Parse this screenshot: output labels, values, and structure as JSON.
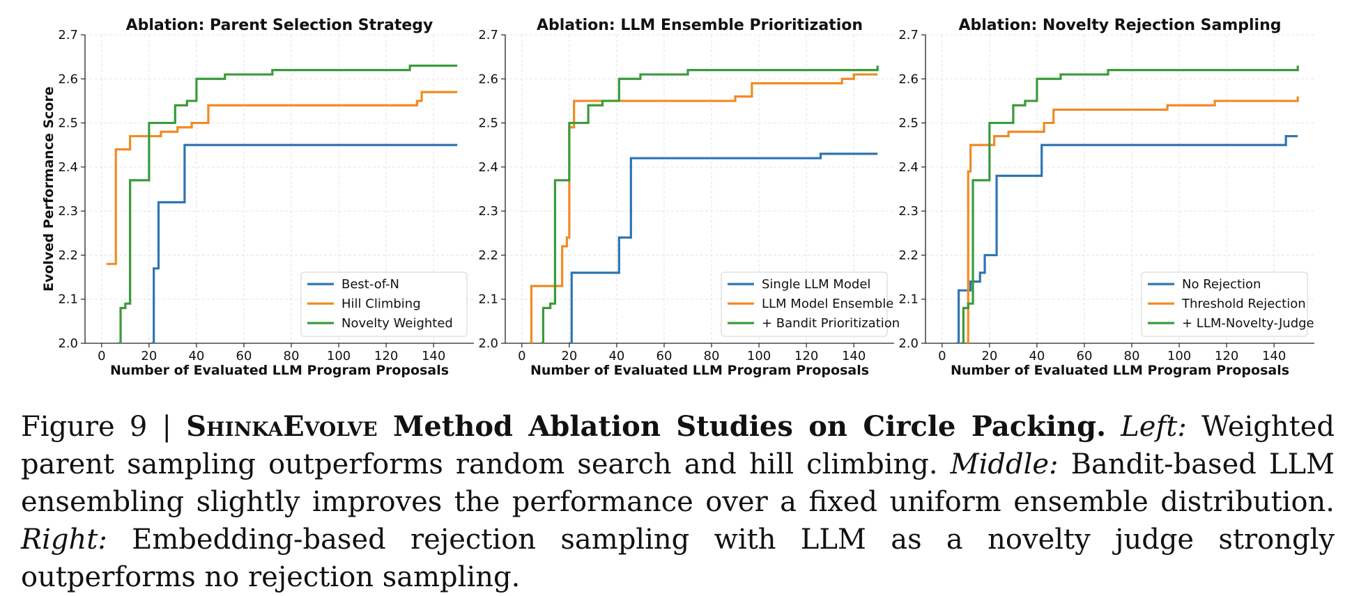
{
  "colors": {
    "blue": "#2f75b0",
    "orange": "#f08a24",
    "green": "#3a9a3a"
  },
  "chart_data": [
    {
      "type": "line",
      "title": "Ablation: Parent Selection Strategy",
      "xlabel": "Number of Evaluated LLM Program Proposals",
      "ylabel": "Evolved Performance Score",
      "xlim": [
        -7,
        157
      ],
      "ylim": [
        2.0,
        2.7
      ],
      "xticks": [
        "0",
        "20",
        "40",
        "60",
        "80",
        "100",
        "120",
        "140"
      ],
      "yticks": [
        "2.0",
        "2.1",
        "2.2",
        "2.3",
        "2.4",
        "2.5",
        "2.6",
        "2.7"
      ],
      "grid": true,
      "legend_position": "bottom-right",
      "series": [
        {
          "name": "Best-of-N",
          "color": "#2f75b0",
          "x": [
            21,
            22,
            24,
            35,
            150
          ],
          "y": [
            2.0,
            2.17,
            2.32,
            2.45,
            2.45
          ]
        },
        {
          "name": "Hill Climbing",
          "color": "#f08a24",
          "x": [
            2,
            6,
            12,
            25,
            32,
            38,
            45,
            88,
            133,
            135,
            150
          ],
          "y": [
            2.18,
            2.44,
            2.47,
            2.48,
            2.49,
            2.5,
            2.54,
            2.54,
            2.55,
            2.57,
            2.57
          ]
        },
        {
          "name": "Novelty Weighted",
          "color": "#3a9a3a",
          "x": [
            7,
            8,
            10,
            12,
            20,
            31,
            36,
            40,
            52,
            58,
            72,
            110,
            130,
            150
          ],
          "y": [
            2.0,
            2.08,
            2.09,
            2.37,
            2.5,
            2.54,
            2.55,
            2.6,
            2.61,
            2.61,
            2.62,
            2.62,
            2.63,
            2.63
          ]
        }
      ]
    },
    {
      "type": "line",
      "title": "Ablation: LLM Ensemble Prioritization",
      "xlabel": "Number of Evaluated LLM Program Proposals",
      "ylabel": "",
      "xlim": [
        -7,
        157
      ],
      "ylim": [
        2.0,
        2.7
      ],
      "xticks": [
        "0",
        "20",
        "40",
        "60",
        "80",
        "100",
        "120",
        "140"
      ],
      "yticks": [
        "2.0",
        "2.1",
        "2.2",
        "2.3",
        "2.4",
        "2.5",
        "2.6",
        "2.7"
      ],
      "grid": true,
      "legend_position": "bottom-right",
      "series": [
        {
          "name": "Single LLM Model",
          "color": "#2f75b0",
          "x": [
            20,
            21,
            40,
            41,
            46,
            125,
            126,
            150
          ],
          "y": [
            2.0,
            2.16,
            2.16,
            2.24,
            2.42,
            2.42,
            2.43,
            2.43
          ]
        },
        {
          "name": "LLM Model Ensemble",
          "color": "#f08a24",
          "x": [
            3,
            4,
            15,
            17,
            19,
            20,
            22,
            60,
            80,
            90,
            97,
            135,
            140,
            150
          ],
          "y": [
            2.0,
            2.13,
            2.13,
            2.22,
            2.24,
            2.49,
            2.55,
            2.55,
            2.55,
            2.56,
            2.59,
            2.6,
            2.61,
            2.61
          ]
        },
        {
          "name": "+ Bandit Prioritization",
          "color": "#3a9a3a",
          "x": [
            8,
            9,
            12,
            14,
            20,
            28,
            34,
            41,
            50,
            55,
            70,
            120,
            150
          ],
          "y": [
            2.0,
            2.08,
            2.09,
            2.37,
            2.5,
            2.54,
            2.55,
            2.6,
            2.61,
            2.61,
            2.62,
            2.62,
            2.63
          ]
        }
      ]
    },
    {
      "type": "line",
      "title": "Ablation: Novelty Rejection Sampling",
      "xlabel": "Number of Evaluated LLM Program Proposals",
      "ylabel": "",
      "xlim": [
        -7,
        157
      ],
      "ylim": [
        2.0,
        2.7
      ],
      "xticks": [
        "0",
        "20",
        "40",
        "60",
        "80",
        "100",
        "120",
        "140"
      ],
      "yticks": [
        "2.0",
        "2.1",
        "2.2",
        "2.3",
        "2.4",
        "2.5",
        "2.6",
        "2.7"
      ],
      "grid": true,
      "legend_position": "bottom-right",
      "series": [
        {
          "name": "No Rejection",
          "color": "#2f75b0",
          "x": [
            6,
            7,
            9,
            12,
            16,
            18,
            20,
            23,
            40,
            42,
            125,
            145,
            150
          ],
          "y": [
            2.0,
            2.12,
            2.12,
            2.14,
            2.16,
            2.2,
            2.2,
            2.38,
            2.38,
            2.45,
            2.45,
            2.47,
            2.47
          ]
        },
        {
          "name": "Threshold Rejection",
          "color": "#f08a24",
          "x": [
            10,
            11,
            12,
            20,
            22,
            28,
            38,
            43,
            47,
            51,
            95,
            115,
            150
          ],
          "y": [
            2.0,
            2.39,
            2.45,
            2.45,
            2.47,
            2.48,
            2.48,
            2.5,
            2.53,
            2.53,
            2.54,
            2.55,
            2.56
          ]
        },
        {
          "name": "+ LLM-Novelty-Judge",
          "color": "#3a9a3a",
          "x": [
            8,
            9,
            11,
            13,
            20,
            30,
            35,
            40,
            50,
            56,
            70,
            120,
            150
          ],
          "y": [
            2.0,
            2.08,
            2.09,
            2.37,
            2.5,
            2.54,
            2.55,
            2.6,
            2.61,
            2.61,
            2.62,
            2.62,
            2.63
          ]
        }
      ]
    }
  ],
  "caption": {
    "figure_label": "Figure 9 | ",
    "brand": "ShinkaEvolve",
    "title": " Method Ablation Studies on Circle Packing.",
    "left_label": "Left:",
    "left_text": " Weighted parent sampling outperforms random search and hill climbing. ",
    "middle_label": "Middle:",
    "middle_text": " Bandit-based LLM ensembling slightly improves the performance over a fixed uniform ensemble distribution. ",
    "right_label": "Right:",
    "right_text": " Embedding-based rejection sampling with LLM as a novelty judge strongly outperforms no rejection sampling."
  }
}
